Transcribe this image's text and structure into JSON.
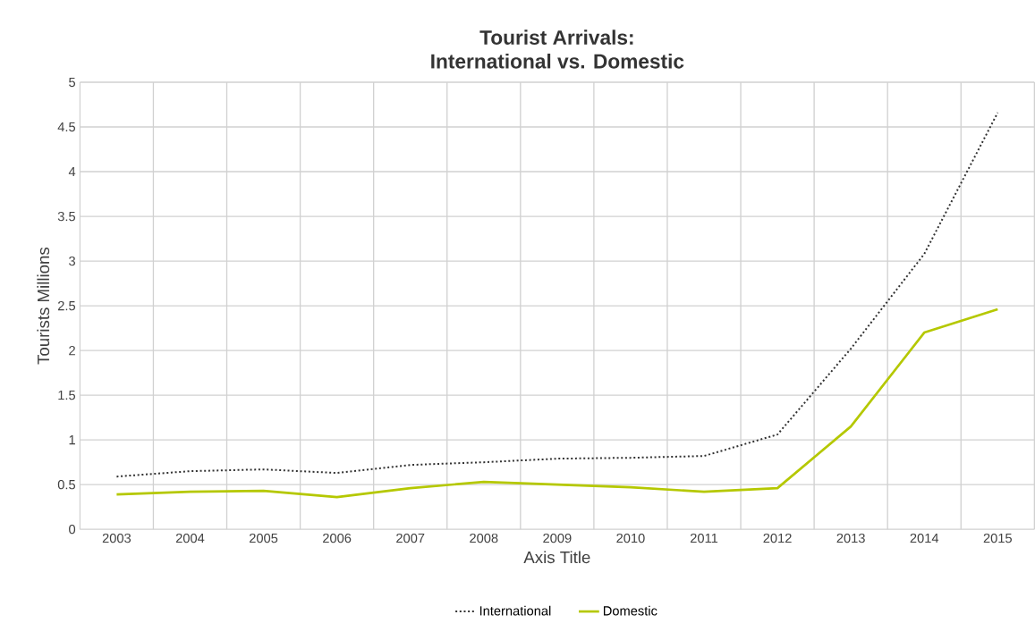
{
  "chart_data": {
    "type": "line",
    "title": "Tourist Arrivals:\nInternational vs. Domestic",
    "xlabel": "Axis Title",
    "ylabel": "Tourists  Millions",
    "categories": [
      "2003",
      "2004",
      "2005",
      "2006",
      "2007",
      "2008",
      "2009",
      "2010",
      "2011",
      "2012",
      "2013",
      "2014",
      "2015"
    ],
    "series": [
      {
        "name": "International",
        "color": "#333333",
        "line_style": "dotted",
        "values": [
          0.59,
          0.65,
          0.67,
          0.63,
          0.72,
          0.75,
          0.79,
          0.8,
          0.82,
          1.06,
          2.02,
          3.08,
          4.66
        ]
      },
      {
        "name": "Domestic",
        "color": "#b5c800",
        "line_style": "solid",
        "values": [
          0.39,
          0.42,
          0.43,
          0.36,
          0.46,
          0.53,
          0.5,
          0.47,
          0.42,
          0.46,
          1.15,
          2.2,
          2.46
        ]
      }
    ],
    "ylim": [
      0,
      5
    ],
    "yticks": [
      0,
      0.5,
      1,
      1.5,
      2,
      2.5,
      3,
      3.5,
      4,
      4.5,
      5
    ],
    "grid": true,
    "legend": "bottom",
    "marker": "none"
  }
}
